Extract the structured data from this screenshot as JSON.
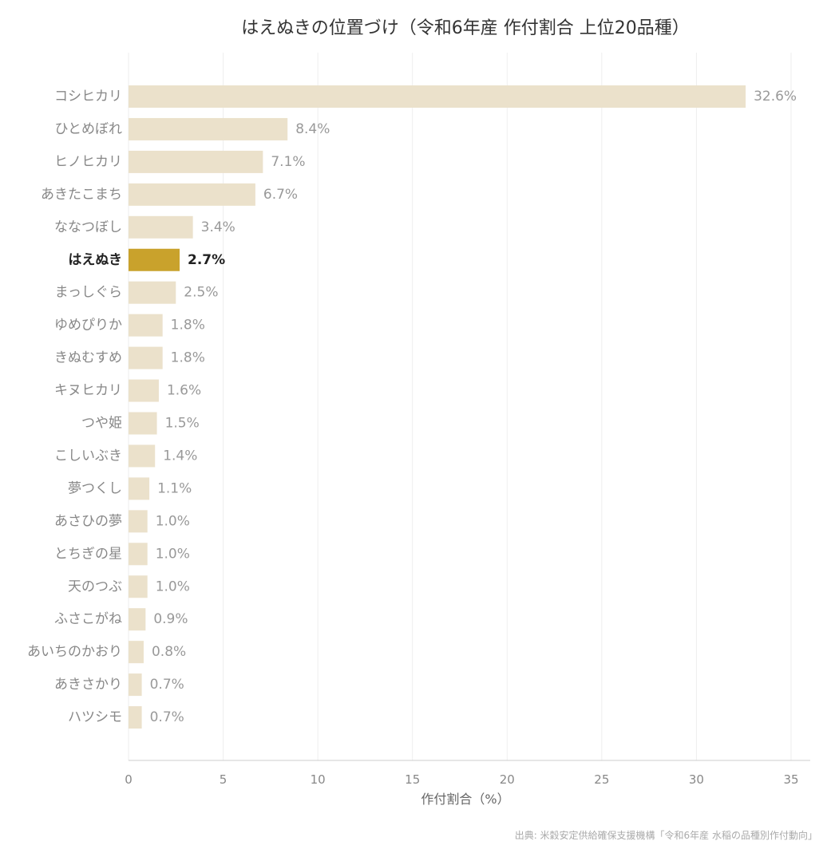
{
  "chart_data": {
    "type": "bar",
    "orientation": "horizontal",
    "title": "はえぬきの位置づけ（令和6年産 作付割合 上位20品種）",
    "xlabel": "作付割合（%）",
    "ylabel": "",
    "xlim": [
      0,
      35
    ],
    "xticks": [
      0,
      5,
      10,
      15,
      20,
      25,
      30,
      35
    ],
    "grid": "vertical",
    "categories": [
      "コシヒカリ",
      "ひとめぼれ",
      "ヒノヒカリ",
      "あきたこまち",
      "ななつぼし",
      "はえぬき",
      "まっしぐら",
      "ゆめぴりか",
      "きぬむすめ",
      "キヌヒカリ",
      "つや姫",
      "こしいぶき",
      "夢つくし",
      "あさひの夢",
      "とちぎの星",
      "天のつぶ",
      "ふさこがね",
      "あいちのかおり",
      "あきさかり",
      "ハツシモ"
    ],
    "values": [
      32.6,
      8.4,
      7.1,
      6.7,
      3.4,
      2.7,
      2.5,
      1.8,
      1.8,
      1.6,
      1.5,
      1.4,
      1.1,
      1.0,
      1.0,
      1.0,
      0.9,
      0.8,
      0.7,
      0.7
    ],
    "value_labels": [
      "32.6%",
      "8.4%",
      "7.1%",
      "6.7%",
      "3.4%",
      "2.7%",
      "2.5%",
      "1.8%",
      "1.8%",
      "1.6%",
      "1.5%",
      "1.4%",
      "1.1%",
      "1.0%",
      "1.0%",
      "1.0%",
      "0.9%",
      "0.8%",
      "0.7%",
      "0.7%"
    ],
    "highlight": "はえぬき",
    "colors": {
      "bar": "#ebe1cb",
      "highlight": "#c9a22c"
    },
    "source": "出典: 米穀安定供給確保支援機構「令和6年産 水稲の品種別作付動向」"
  }
}
